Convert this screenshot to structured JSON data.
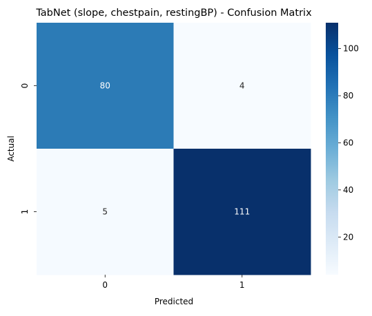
{
  "chart_data": {
    "type": "heatmap",
    "title": "TabNet (slope, chestpain, restingBP) - Confusion Matrix",
    "xlabel": "Predicted",
    "ylabel": "Actual",
    "x_categories": [
      "0",
      "1"
    ],
    "y_categories": [
      "0",
      "1"
    ],
    "values": [
      [
        80,
        4
      ],
      [
        5,
        111
      ]
    ],
    "colormap": "Blues",
    "color_range": [
      4,
      111
    ],
    "colorbar_ticks": [
      20,
      40,
      60,
      80,
      100
    ],
    "colorbar_tick_labels": [
      "20",
      "40",
      "60",
      "80",
      "100"
    ],
    "colors": {
      "cell_0_0": "#2c7bb6",
      "cell_0_1": "#f7fbff",
      "cell_1_0": "#f5faff",
      "cell_1_1": "#08306b"
    }
  }
}
